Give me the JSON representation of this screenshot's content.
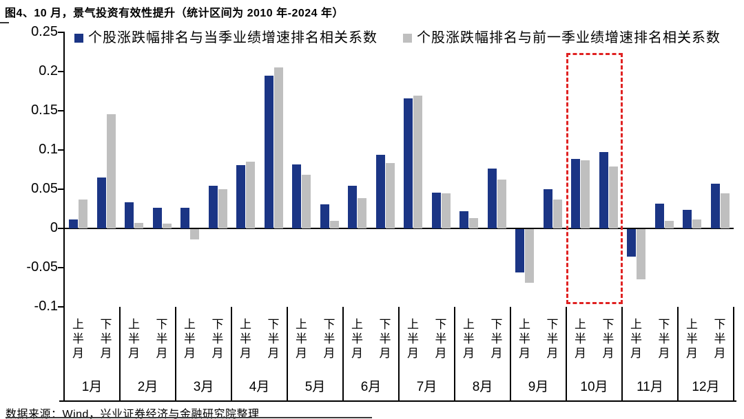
{
  "title": "图4、10 月，景气投资有效性提升（统计区间为 2010 年-2024 年）",
  "source": "数据来源：Wind，兴业证券经济与金融研究院整理",
  "chart_data": {
    "type": "bar",
    "title": "图4、10 月，景气投资有效性提升（统计区间为 2010 年-2024 年）",
    "months": [
      "1月",
      "2月",
      "3月",
      "4月",
      "5月",
      "6月",
      "7月",
      "8月",
      "9月",
      "10月",
      "11月",
      "12月"
    ],
    "half_labels": [
      "上半月",
      "下半月"
    ],
    "categories": [
      "1月上半月",
      "1月下半月",
      "2月上半月",
      "2月下半月",
      "3月上半月",
      "3月下半月",
      "4月上半月",
      "4月下半月",
      "5月上半月",
      "5月下半月",
      "6月上半月",
      "6月下半月",
      "7月上半月",
      "7月下半月",
      "8月上半月",
      "8月下半月",
      "9月上半月",
      "9月下半月",
      "10月上半月",
      "10月下半月",
      "11月上半月",
      "11月下半月",
      "12月上半月",
      "12月下半月"
    ],
    "series": [
      {
        "name": "个股涨跌幅排名与当季业绩增速排名相关系数",
        "color": "#1b3585",
        "values": [
          0.011,
          0.065,
          0.033,
          0.026,
          0.026,
          0.054,
          0.081,
          0.195,
          0.082,
          0.031,
          0.054,
          0.094,
          0.166,
          0.046,
          0.022,
          0.076,
          -0.055,
          0.05,
          0.089,
          0.097,
          -0.035,
          0.032,
          0.024,
          0.057
        ]
      },
      {
        "name": "个股涨跌幅排名与前一季业绩增速排名相关系数",
        "color": "#bfbfbf",
        "values": [
          0.037,
          0.146,
          0.007,
          0.006,
          -0.013,
          0.05,
          0.085,
          0.205,
          0.068,
          0.01,
          0.039,
          0.083,
          0.169,
          0.045,
          0.013,
          0.062,
          -0.068,
          0.037,
          0.087,
          0.079,
          -0.064,
          0.01,
          0.011,
          0.045
        ]
      }
    ],
    "y_ticks": [
      0.25,
      0.2,
      0.15,
      0.1,
      0.05,
      0,
      -0.05,
      -0.1
    ],
    "ylim": [
      -0.1,
      0.25
    ],
    "grid": false,
    "legend_position": "top",
    "highlight": {
      "month": "10月",
      "style": "red-dashed-box",
      "color": "#e02222"
    }
  }
}
